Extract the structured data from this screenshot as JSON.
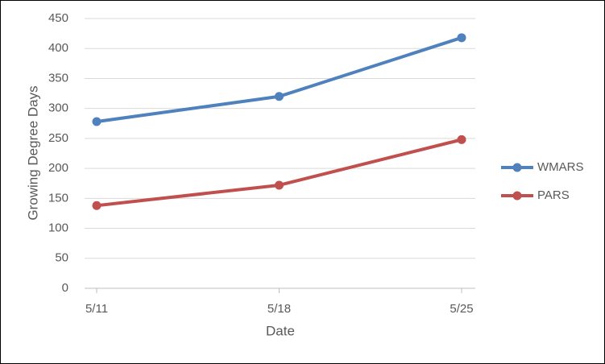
{
  "chart_data": {
    "type": "line",
    "x_label": "Date",
    "y_label": "Growing Degree Days",
    "categories": [
      "5/11",
      "5/18",
      "5/25"
    ],
    "series": [
      {
        "name": "WMARS",
        "color": "#4f81bd",
        "values": [
          278,
          320,
          418
        ]
      },
      {
        "name": "PARS",
        "color": "#c0504d",
        "values": [
          138,
          172,
          248
        ]
      }
    ],
    "ylim": [
      0,
      450
    ],
    "yticks": [
      0,
      50,
      100,
      150,
      200,
      250,
      300,
      350,
      400,
      450
    ],
    "grid": true,
    "legend": "right"
  }
}
